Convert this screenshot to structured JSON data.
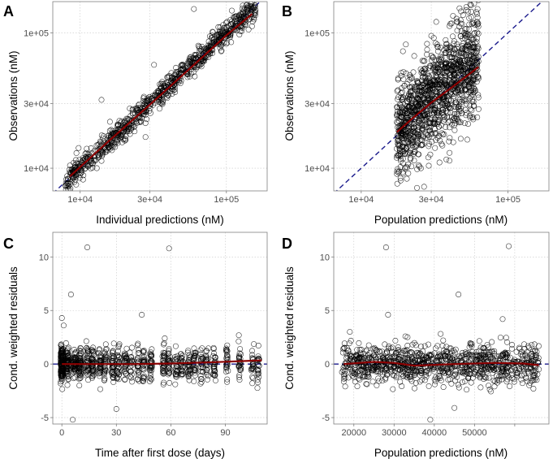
{
  "colors": {
    "points": "#000000",
    "reference_line": "#1a1a8c",
    "smooth_line": "#8b0000",
    "grid": "#c8c8c8",
    "border": "#7f7f7f"
  },
  "chart_data": [
    {
      "panel": "A",
      "type": "scatter",
      "xlabel": "Individual predictions (nM)",
      "ylabel": "Observations (nM)",
      "x_scale": "log10",
      "y_scale": "log10",
      "xlim": [
        6500,
        190000
      ],
      "ylim": [
        6800,
        170000
      ],
      "x_ticks": [
        10000,
        30000,
        100000
      ],
      "x_tick_labels": [
        "1e+04",
        "3e+04",
        "1e+05"
      ],
      "y_ticks": [
        10000,
        30000,
        100000
      ],
      "y_tick_labels": [
        "1e+04",
        "3e+04",
        "1e+05"
      ],
      "reference_line": "identity (y = x), dashed",
      "point_generation": {
        "n": 900,
        "x_log10_range": [
          3.9,
          5.2
        ],
        "y_log_sd": 0.045,
        "seed": 11
      },
      "outliers": [
        [
          60000,
          150000
        ],
        [
          32000,
          58000
        ],
        [
          14000,
          32000
        ],
        [
          28000,
          17000
        ]
      ],
      "smooth": {
        "x": [
          8500,
          15000,
          30000,
          60000,
          100000,
          150000
        ],
        "y": [
          8700,
          15200,
          29500,
          58000,
          96000,
          138000
        ]
      }
    },
    {
      "panel": "B",
      "type": "scatter",
      "xlabel": "Population predictions (nM)",
      "ylabel": "Observations (nM)",
      "x_scale": "log10",
      "y_scale": "log10",
      "xlim": [
        6500,
        190000
      ],
      "ylim": [
        6800,
        170000
      ],
      "x_ticks": [
        10000,
        30000,
        100000
      ],
      "x_tick_labels": [
        "1e+04",
        "3e+04",
        "1e+05"
      ],
      "y_ticks": [
        10000,
        30000,
        100000
      ],
      "y_tick_labels": [
        "1e+04",
        "3e+04",
        "1e+05"
      ],
      "reference_line": "identity (y = x), dashed",
      "point_generation": {
        "n": 1300,
        "x_log10_range": [
          4.24,
          4.8
        ],
        "y_log_sd": 0.19,
        "seed": 23
      },
      "outliers": [
        [
          56000,
          160000
        ],
        [
          62000,
          150000
        ],
        [
          30000,
          95000
        ],
        [
          45000,
          120000
        ]
      ],
      "smooth": {
        "x": [
          17500,
          22000,
          30000,
          42000,
          55000,
          63000
        ],
        "y": [
          18500,
          23000,
          30500,
          40000,
          50000,
          56000
        ]
      }
    },
    {
      "panel": "C",
      "type": "scatter",
      "xlabel": "Time after first dose (days)",
      "ylabel": "Cond. weighted residuals",
      "x_scale": "linear",
      "y_scale": "linear",
      "xlim": [
        -5,
        113
      ],
      "ylim": [
        -5.6,
        12.3
      ],
      "x_ticks": [
        0,
        30,
        60,
        90
      ],
      "x_tick_labels": [
        "0",
        "30",
        "60",
        "90"
      ],
      "y_ticks": [
        -5,
        0,
        5,
        10
      ],
      "y_tick_labels": [
        "-5",
        "0",
        "5",
        "10"
      ],
      "reference_line": "y = 0, dashed",
      "point_generation": {
        "n": 1000,
        "x_range": [
          0,
          110
        ],
        "y_sd": 0.8,
        "seed": 37
      },
      "outliers": [
        [
          14,
          10.9
        ],
        [
          59,
          10.8
        ],
        [
          5,
          6.5
        ],
        [
          0,
          4.3
        ],
        [
          44,
          4.6
        ],
        [
          6,
          -5.2
        ],
        [
          30,
          -4.2
        ],
        [
          1,
          3.6
        ]
      ],
      "smooth": {
        "x": [
          0,
          20,
          40,
          60,
          80,
          110
        ],
        "y": [
          0.0,
          0.0,
          0.0,
          0.05,
          0.15,
          0.35
        ]
      }
    },
    {
      "panel": "D",
      "type": "scatter",
      "xlabel": "Population predictions (nM)",
      "ylabel": "Cond. weighted residuals",
      "x_scale": "linear",
      "y_scale": "linear",
      "xlim": [
        15000,
        68500
      ],
      "ylim": [
        -5.6,
        12.3
      ],
      "x_ticks": [
        20000,
        30000,
        40000,
        50000,
        60000
      ],
      "x_tick_labels": [
        "20000",
        "30000",
        "40000",
        "50000",
        ""
      ],
      "y_ticks": [
        -5,
        0,
        5,
        10
      ],
      "y_tick_labels": [
        "-5",
        "0",
        "5",
        "10"
      ],
      "reference_line": "y = 0, dashed",
      "point_generation": {
        "n": 1000,
        "x_range": [
          17000,
          66000
        ],
        "y_sd": 0.9,
        "seed": 53
      },
      "outliers": [
        [
          28000,
          10.9
        ],
        [
          58500,
          11.0
        ],
        [
          46000,
          6.5
        ],
        [
          28500,
          4.6
        ],
        [
          57000,
          4.2
        ],
        [
          39000,
          -5.2
        ],
        [
          45000,
          -4.1
        ],
        [
          19000,
          3.0
        ]
      ],
      "smooth": {
        "x": [
          17500,
          25000,
          30000,
          35000,
          45000,
          55000,
          62000,
          66000
        ],
        "y": [
          0.0,
          0.2,
          0.1,
          -0.15,
          0.0,
          0.1,
          0.05,
          -0.1
        ]
      }
    }
  ]
}
